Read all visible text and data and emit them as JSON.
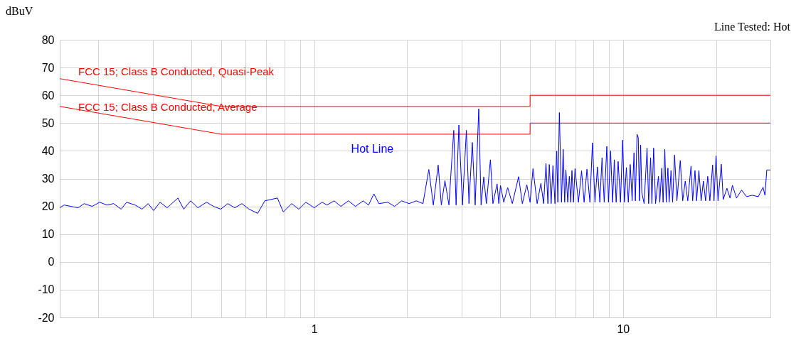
{
  "chart_data": {
    "type": "line",
    "ylabel": "dBuV",
    "annotations": [
      "Line Tested: Hot"
    ],
    "log": "x",
    "grid": true,
    "line_style": "solid",
    "xlim": [
      0.15,
      30
    ],
    "xticks": [
      {
        "value": 0.2,
        "label": null
      },
      {
        "value": 0.3,
        "label": null
      },
      {
        "value": 0.4,
        "label": null
      },
      {
        "value": 0.5,
        "label": null
      },
      {
        "value": 0.6,
        "label": null
      },
      {
        "value": 0.7,
        "label": null
      },
      {
        "value": 0.8,
        "label": null
      },
      {
        "value": 0.9,
        "label": null
      },
      1,
      {
        "value": 2,
        "label": null
      },
      {
        "value": 3,
        "label": null
      },
      {
        "value": 4,
        "label": null
      },
      {
        "value": 5,
        "label": null
      },
      {
        "value": 6,
        "label": null
      },
      {
        "value": 7,
        "label": null
      },
      {
        "value": 8,
        "label": null
      },
      {
        "value": 9,
        "label": null
      },
      10,
      {
        "value": 20,
        "label": null
      },
      {
        "value": 30,
        "label": null
      }
    ],
    "ylim": [
      -20,
      80
    ],
    "yticks": [
      -20,
      -10,
      0,
      10,
      20,
      30,
      40,
      50,
      60,
      70,
      80
    ],
    "series": [
      {
        "name": "FCC 15; Class B Conducted, Quasi-Peak",
        "type": "line",
        "color": "#ff0000",
        "x": [
          0.15,
          0.5,
          5,
          5,
          30
        ],
        "values": [
          66,
          56,
          56,
          60,
          60
        ]
      },
      {
        "name": "FCC 15; Class B Conducted, Average",
        "type": "line",
        "color": "#ff0000",
        "x": [
          0.15,
          0.5,
          5,
          5,
          30
        ],
        "values": [
          56,
          46,
          46,
          50,
          50
        ]
      },
      {
        "name": "Hot Line",
        "type": "line",
        "color": "#0000ff",
        "x": [
          0.15,
          0.155,
          0.163,
          0.172,
          0.18,
          0.191,
          0.202,
          0.213,
          0.224,
          0.237,
          0.247,
          0.263,
          0.277,
          0.29,
          0.302,
          0.317,
          0.334,
          0.362,
          0.378,
          0.398,
          0.42,
          0.448,
          0.472,
          0.498,
          0.525,
          0.553,
          0.583,
          0.615,
          0.656,
          0.692,
          0.76,
          0.794,
          0.845,
          0.891,
          0.94,
          1.0,
          1.06,
          1.1,
          1.16,
          1.22,
          1.29,
          1.36,
          1.44,
          1.5,
          1.56,
          1.62,
          1.73,
          1.82,
          1.92,
          2.03,
          2.14,
          2.25,
          2.35,
          2.43,
          2.52,
          2.58,
          2.65,
          2.73,
          2.83,
          2.88,
          2.94,
          3.02,
          3.11,
          3.17,
          3.25,
          3.32,
          3.41,
          3.47,
          3.54,
          3.61,
          3.72,
          3.79,
          3.91,
          3.96,
          4.01,
          4.11,
          4.23,
          4.38,
          4.59,
          4.72,
          4.88,
          5.0,
          5.11,
          5.27,
          5.42,
          5.53,
          5.63,
          5.71,
          5.77,
          5.85,
          5.93,
          6.02,
          6.1,
          6.15,
          6.22,
          6.32,
          6.4,
          6.47,
          6.53,
          6.62,
          6.7,
          6.77,
          6.83,
          6.91,
          6.99,
          7.17,
          7.34,
          7.48,
          7.64,
          7.81,
          7.96,
          8.11,
          8.26,
          8.41,
          8.55,
          8.69,
          8.86,
          8.97,
          9.11,
          9.25,
          9.37,
          9.5,
          9.64,
          9.81,
          9.97,
          10.1,
          10.25,
          10.4,
          10.55,
          10.7,
          10.85,
          10.96,
          11.1,
          11.2,
          11.3,
          11.4,
          11.5,
          11.7,
          11.96,
          12.1,
          12.28,
          12.4,
          12.56,
          12.74,
          13.02,
          13.15,
          13.35,
          13.48,
          13.65,
          13.8,
          13.97,
          14.1,
          14.3,
          14.47,
          14.68,
          14.94,
          15.32,
          15.6,
          15.9,
          16.2,
          16.6,
          16.8,
          17.1,
          17.3,
          17.6,
          17.9,
          18.2,
          18.5,
          18.8,
          19.1,
          19.5,
          19.7,
          20.0,
          20.3,
          20.8,
          21.1,
          21.7,
          22.2,
          22.6,
          23.3,
          24.2,
          25.1,
          26.2,
          27.4,
          28.4,
          28.8,
          29.2,
          30
        ],
        "values": [
          19.5,
          20.5,
          20,
          19.5,
          21,
          20,
          21.5,
          20.5,
          21,
          19,
          21.5,
          20.5,
          19,
          21,
          18.5,
          21.5,
          19.5,
          23,
          19,
          22,
          19.5,
          21.5,
          20,
          19,
          21,
          19.5,
          21,
          19,
          17.5,
          22,
          23,
          18,
          21,
          19,
          21.5,
          19.5,
          21.5,
          20.5,
          22,
          20,
          22,
          20,
          22,
          20.5,
          24.5,
          21,
          21.5,
          20,
          22,
          21,
          22,
          21,
          33.3,
          20.5,
          34.9,
          20.5,
          29.3,
          20.5,
          47.4,
          20.5,
          49.3,
          20.5,
          47.4,
          21,
          43,
          20.5,
          55.1,
          20.5,
          30.6,
          21,
          36.8,
          21,
          28.1,
          21,
          27.5,
          21.5,
          26.8,
          21,
          30.7,
          21,
          27.8,
          21.5,
          33.6,
          21,
          28.3,
          21,
          35.5,
          21,
          35.1,
          21,
          34.7,
          21,
          39.9,
          21.5,
          53.8,
          21.5,
          40.6,
          21.5,
          33.2,
          21.5,
          30.8,
          21.5,
          32.9,
          21.5,
          33.6,
          21.5,
          32.8,
          21.5,
          33.4,
          21.5,
          42.9,
          21.5,
          34.2,
          21.5,
          37.5,
          21.5,
          41.6,
          21.5,
          40,
          21.5,
          36.8,
          21.5,
          36.2,
          21.5,
          43.9,
          21.5,
          34,
          21.5,
          35.1,
          22,
          39.3,
          22,
          46,
          44.7,
          22,
          42.1,
          25,
          21,
          41,
          21,
          37.5,
          21,
          41,
          21,
          30.8,
          21.5,
          33.8,
          21.5,
          40.6,
          21.5,
          33.8,
          21.5,
          32.9,
          21.5,
          38.5,
          22,
          36.5,
          22,
          29.1,
          22,
          34.5,
          22,
          32.9,
          22,
          32.9,
          22,
          29.1,
          22,
          30.8,
          22,
          34.9,
          22,
          38.2,
          22,
          35.2,
          22.5,
          26.5,
          23,
          27.6,
          23,
          25.9,
          23.5,
          24,
          23.5,
          26.9,
          24,
          33.1,
          33.1
        ]
      }
    ]
  }
}
